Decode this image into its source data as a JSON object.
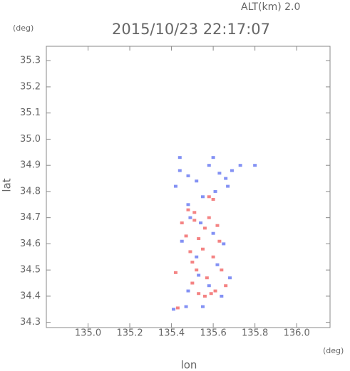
{
  "chart_data": {
    "type": "scatter",
    "title": "2015/10/23 22:17:07",
    "annotation": "ALT(km)  2.0",
    "x_unit": "(deg)",
    "y_unit": "(deg)",
    "xlabel": "lon",
    "ylabel": "lat",
    "xlim": [
      134.8,
      136.16
    ],
    "ylim": [
      34.28,
      35.355
    ],
    "xticks": [
      {
        "value": 135.0,
        "label": "135.0"
      },
      135.2,
      135.4,
      135.6,
      135.8,
      {
        "value": 136.0,
        "label": "136.0"
      }
    ],
    "yticks": [
      34.3,
      34.4,
      34.5,
      34.6,
      34.7,
      34.8,
      34.9,
      {
        "value": 35.0,
        "label": "35.0"
      },
      35.1,
      35.2,
      35.3
    ],
    "series": [
      {
        "color": "#f05a5a",
        "x": [
          135.53,
          135.56,
          135.59,
          135.61,
          135.42,
          135.43,
          135.5,
          135.52,
          135.49,
          135.53,
          135.56,
          135.51,
          135.58,
          135.62,
          135.47,
          135.55,
          135.6,
          135.64,
          135.57,
          135.5,
          135.66,
          135.58,
          135.6,
          135.51,
          135.45,
          135.63,
          135.48
        ],
        "y": [
          34.41,
          34.4,
          34.41,
          34.42,
          34.49,
          34.355,
          34.53,
          34.5,
          34.57,
          34.62,
          34.66,
          34.69,
          34.7,
          34.67,
          34.63,
          34.58,
          34.55,
          34.5,
          34.47,
          34.45,
          34.44,
          34.78,
          34.77,
          34.72,
          34.68,
          34.61,
          34.73
        ]
      },
      {
        "color": "#5a6cf0",
        "x": [
          135.44,
          135.48,
          135.52,
          135.42,
          135.58,
          135.63,
          135.69,
          135.73,
          135.8,
          135.66,
          135.67,
          135.61,
          135.55,
          135.49,
          135.54,
          135.6,
          135.65,
          135.45,
          135.52,
          135.62,
          135.68,
          135.58,
          135.64,
          135.55,
          135.47,
          135.41,
          135.53,
          135.48,
          135.44,
          135.6,
          135.48
        ],
        "y": [
          34.88,
          34.86,
          34.84,
          34.82,
          34.9,
          34.87,
          34.88,
          34.9,
          34.9,
          34.85,
          34.82,
          34.8,
          34.78,
          34.7,
          34.68,
          34.64,
          34.6,
          34.61,
          34.55,
          34.52,
          34.47,
          34.44,
          34.4,
          34.36,
          34.36,
          34.35,
          34.48,
          34.42,
          34.93,
          34.93,
          34.75
        ]
      }
    ]
  }
}
